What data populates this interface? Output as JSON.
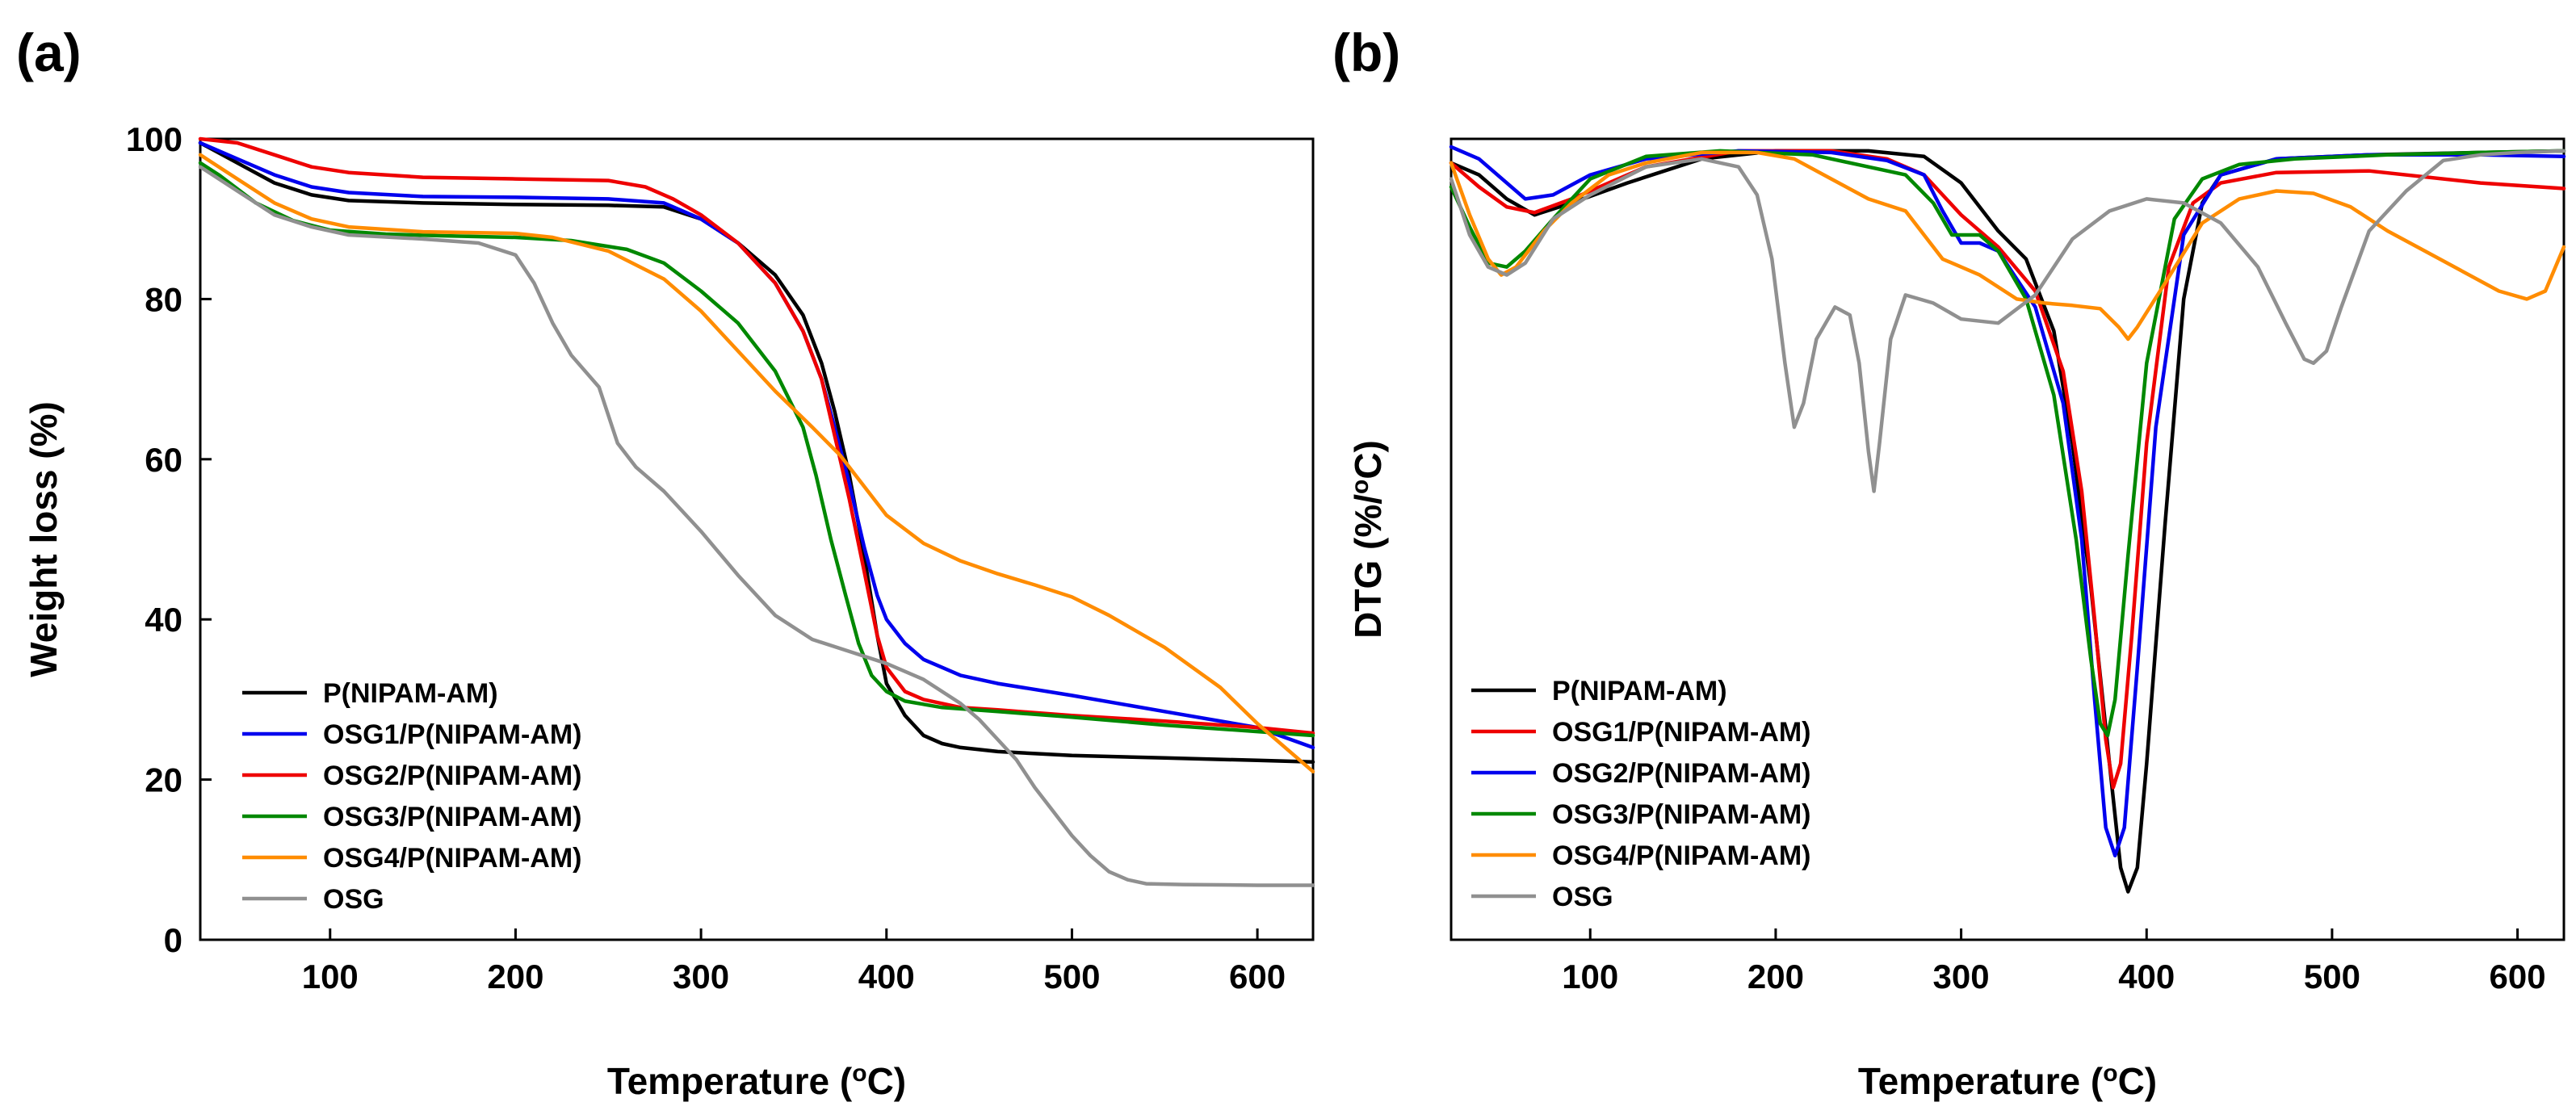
{
  "chart_data": [
    {
      "type": "line",
      "panel_label": "(a)",
      "xlabel_prefix": "Temperature (",
      "xlabel_sup": "o",
      "xlabel_suffix": "C)",
      "ylabel": "Weight loss (%)",
      "xlim": [
        30,
        630
      ],
      "ylim": [
        0,
        100
      ],
      "xticks": [
        100,
        200,
        300,
        400,
        500,
        600
      ],
      "yticks": [
        0,
        20,
        40,
        60,
        80,
        100
      ],
      "legend_position": "bottom-left",
      "series": [
        {
          "name": "P(NIPAM-AM)",
          "color": "#000000",
          "x": [
            30,
            50,
            70,
            90,
            110,
            150,
            200,
            250,
            280,
            300,
            320,
            340,
            355,
            365,
            372,
            380,
            388,
            395,
            400,
            410,
            420,
            430,
            440,
            460,
            500,
            550,
            600,
            630
          ],
          "y": [
            99.5,
            97,
            94.5,
            93,
            92.3,
            92,
            91.8,
            91.7,
            91.5,
            90,
            87,
            83,
            78,
            72,
            66,
            58,
            48,
            38,
            32,
            28,
            25.5,
            24.5,
            24,
            23.5,
            23,
            22.7,
            22.4,
            22.2
          ]
        },
        {
          "name": "OSG1/P(NIPAM-AM)",
          "color": "#0000ee",
          "x": [
            30,
            50,
            70,
            90,
            110,
            150,
            200,
            250,
            280,
            300,
            320,
            340,
            355,
            365,
            372,
            380,
            388,
            395,
            400,
            410,
            420,
            430,
            440,
            460,
            500,
            550,
            600,
            630
          ],
          "y": [
            99.5,
            97.5,
            95.5,
            94,
            93.3,
            92.8,
            92.7,
            92.5,
            92,
            90,
            87,
            82,
            76,
            70,
            64,
            57,
            49,
            43,
            40,
            37,
            35,
            34,
            33,
            32,
            30.5,
            28.5,
            26.5,
            24
          ]
        },
        {
          "name": "OSG2/P(NIPAM-AM)",
          "color": "#ee0000",
          "x": [
            30,
            50,
            70,
            90,
            110,
            150,
            200,
            250,
            270,
            285,
            300,
            320,
            340,
            355,
            365,
            372,
            380,
            388,
            395,
            400,
            410,
            420,
            440,
            460,
            500,
            550,
            600,
            630
          ],
          "y": [
            100,
            99.5,
            98,
            96.5,
            95.8,
            95.2,
            95,
            94.8,
            94,
            92.5,
            90.5,
            87,
            82,
            76,
            70,
            63,
            55,
            46,
            38,
            34,
            31,
            30,
            29,
            28.7,
            28,
            27.3,
            26.5,
            25.8
          ]
        },
        {
          "name": "OSG3/P(NIPAM-AM)",
          "color": "#008800",
          "x": [
            30,
            40,
            60,
            80,
            100,
            130,
            160,
            200,
            230,
            260,
            280,
            300,
            320,
            340,
            355,
            362,
            370,
            378,
            385,
            392,
            400,
            410,
            430,
            460,
            500,
            550,
            600,
            630
          ],
          "y": [
            97,
            95.5,
            92,
            89.8,
            88.6,
            88.1,
            87.9,
            87.7,
            87.3,
            86.2,
            84.5,
            81,
            77,
            71,
            64,
            58,
            50,
            43,
            37,
            33,
            31,
            29.8,
            29,
            28.5,
            27.8,
            26.8,
            26,
            25.5
          ]
        },
        {
          "name": "OSG4/P(NIPAM-AM)",
          "color": "#ff8c00",
          "x": [
            30,
            50,
            70,
            90,
            110,
            150,
            200,
            220,
            250,
            280,
            300,
            320,
            340,
            360,
            375,
            390,
            400,
            420,
            440,
            460,
            480,
            500,
            520,
            550,
            580,
            600,
            615,
            630
          ],
          "y": [
            98,
            95,
            92,
            90,
            89,
            88.4,
            88.2,
            87.7,
            86,
            82.5,
            78.5,
            73.5,
            68.5,
            64,
            60.5,
            56,
            53,
            49.5,
            47.3,
            45.7,
            44.3,
            42.8,
            40.5,
            36.5,
            31.5,
            27,
            24,
            21
          ]
        },
        {
          "name": "OSG",
          "color": "#909090",
          "x": [
            30,
            50,
            70,
            90,
            110,
            150,
            180,
            200,
            210,
            220,
            230,
            245,
            255,
            265,
            280,
            300,
            320,
            340,
            360,
            380,
            400,
            420,
            440,
            450,
            460,
            470,
            480,
            490,
            500,
            510,
            520,
            530,
            540,
            560,
            600,
            630
          ],
          "y": [
            96.5,
            93.5,
            90.5,
            89,
            88,
            87.5,
            87,
            85.5,
            82,
            77,
            73,
            69,
            62,
            59,
            56,
            51,
            45.5,
            40.5,
            37.5,
            36,
            34.5,
            32.5,
            29.5,
            27.5,
            25,
            22.5,
            19,
            16,
            13,
            10.5,
            8.5,
            7.5,
            7,
            6.9,
            6.8,
            6.8
          ]
        }
      ]
    },
    {
      "type": "line",
      "panel_label": "(b)",
      "xlabel_prefix": "Temperature (",
      "xlabel_sup": "o",
      "xlabel_suffix": "C)",
      "ylabel_prefix": "DTG (%/",
      "ylabel_sup": "o",
      "ylabel_suffix": "C)",
      "xlim": [
        25,
        625
      ],
      "ylim": [
        0,
        100
      ],
      "xticks": [
        100,
        200,
        300,
        400,
        500,
        600
      ],
      "yticks": [],
      "legend_position": "bottom-left",
      "series": [
        {
          "name": "P(NIPAM-AM)",
          "color": "#000000",
          "x": [
            25,
            40,
            55,
            70,
            90,
            120,
            160,
            200,
            250,
            280,
            300,
            320,
            335,
            350,
            360,
            370,
            380,
            386,
            390,
            395,
            400,
            410,
            420,
            430,
            440,
            470,
            520,
            580,
            625
          ],
          "y": [
            97,
            95.5,
            92.5,
            90.5,
            92,
            94.5,
            97.5,
            98.5,
            98.5,
            97.8,
            94.5,
            88.5,
            85,
            76,
            62,
            44,
            22,
            9,
            6,
            9,
            22,
            52,
            80,
            92,
            95.5,
            97.5,
            98,
            98.3,
            98.5
          ]
        },
        {
          "name": "OSG1/P(NIPAM-AM)",
          "color": "#ee0000",
          "x": [
            25,
            40,
            55,
            70,
            90,
            130,
            180,
            230,
            260,
            280,
            300,
            320,
            340,
            355,
            365,
            372,
            378,
            382,
            386,
            392,
            400,
            412,
            425,
            440,
            470,
            520,
            580,
            625
          ],
          "y": [
            97,
            94,
            91.5,
            90.8,
            92.5,
            96.5,
            98.5,
            98.5,
            97.5,
            95.5,
            90.5,
            86.5,
            81,
            71,
            56,
            40,
            25,
            19,
            22,
            38,
            62,
            84,
            92,
            94.5,
            95.8,
            96,
            94.5,
            93.8
          ]
        },
        {
          "name": "OSG2/P(NIPAM-AM)",
          "color": "#0000ee",
          "x": [
            25,
            40,
            55,
            65,
            80,
            100,
            130,
            180,
            230,
            260,
            280,
            290,
            300,
            310,
            320,
            340,
            355,
            365,
            372,
            378,
            383,
            388,
            395,
            405,
            420,
            440,
            470,
            520,
            580,
            625
          ],
          "y": [
            99,
            97.5,
            94.5,
            92.5,
            93,
            95.5,
            97.5,
            98.5,
            98.3,
            97.3,
            95.5,
            91,
            87,
            87,
            86,
            79,
            67,
            50,
            30,
            14,
            10.5,
            14,
            34,
            64,
            88,
            95.5,
            97.5,
            98,
            98,
            97.8
          ]
        },
        {
          "name": "OSG3/P(NIPAM-AM)",
          "color": "#008800",
          "x": [
            25,
            35,
            45,
            55,
            65,
            80,
            100,
            130,
            170,
            220,
            250,
            270,
            285,
            295,
            310,
            320,
            335,
            350,
            362,
            370,
            375,
            379,
            383,
            390,
            400,
            415,
            430,
            450,
            480,
            530,
            580,
            625
          ],
          "y": [
            94,
            89,
            84.5,
            84,
            86,
            90,
            95,
            97.8,
            98.5,
            98,
            96.5,
            95.5,
            92,
            88,
            88,
            86,
            80,
            68,
            50,
            35,
            27,
            25.5,
            30,
            48,
            72,
            90,
            95,
            96.8,
            97.5,
            98,
            98.3,
            98.5
          ]
        },
        {
          "name": "OSG4/P(NIPAM-AM)",
          "color": "#ff8c00",
          "x": [
            25,
            35,
            45,
            52,
            60,
            75,
            90,
            110,
            130,
            160,
            190,
            210,
            230,
            250,
            270,
            290,
            310,
            330,
            345,
            360,
            375,
            385,
            390,
            395,
            410,
            430,
            450,
            470,
            490,
            510,
            530,
            550,
            570,
            590,
            605,
            615,
            625
          ],
          "y": [
            97,
            90.5,
            85,
            83,
            84,
            88.5,
            92,
            95.5,
            97,
            98.3,
            98.3,
            97.5,
            95,
            92.5,
            91,
            85,
            83,
            80,
            79.5,
            79.2,
            78.8,
            76.5,
            75,
            76.5,
            82,
            89.5,
            92.5,
            93.5,
            93.2,
            91.5,
            88.5,
            86,
            83.5,
            81,
            80,
            81,
            86.5
          ]
        },
        {
          "name": "OSG",
          "color": "#909090",
          "x": [
            25,
            35,
            45,
            55,
            65,
            80,
            100,
            130,
            160,
            180,
            190,
            198,
            205,
            210,
            215,
            222,
            232,
            240,
            245,
            250,
            253,
            256,
            262,
            270,
            285,
            300,
            320,
            340,
            360,
            380,
            400,
            420,
            440,
            460,
            475,
            485,
            490,
            497,
            505,
            520,
            540,
            560,
            580,
            600,
            625
          ],
          "y": [
            95,
            88,
            84,
            83,
            84.5,
            90,
            93,
            96.5,
            97.5,
            96.5,
            93,
            85,
            72,
            64,
            67,
            75,
            79,
            78,
            72,
            61,
            56,
            62,
            75,
            80.5,
            79.5,
            77.5,
            77,
            80.5,
            87.5,
            91,
            92.5,
            92,
            89.5,
            84,
            77,
            72.5,
            72,
            73.5,
            79,
            88.5,
            93.5,
            97.3,
            98,
            98.3,
            98.5
          ]
        }
      ]
    }
  ]
}
